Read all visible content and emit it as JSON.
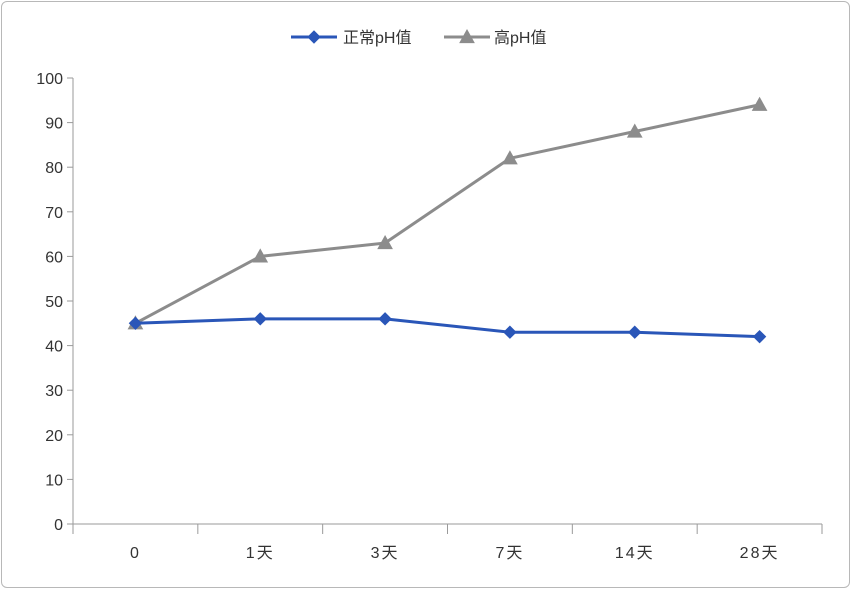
{
  "chart_data": {
    "type": "line",
    "categories": [
      "0",
      "1天",
      "3天",
      "7天",
      "14天",
      "28天"
    ],
    "series": [
      {
        "name": "正常pH值",
        "values": [
          45,
          46,
          46,
          43,
          43,
          42
        ],
        "color": "#2a56b8",
        "marker": "diamond"
      },
      {
        "name": "高pH值",
        "values": [
          45,
          60,
          63,
          82,
          88,
          94
        ],
        "color": "#8c8c8c",
        "marker": "triangle"
      }
    ],
    "ylim": [
      0,
      100
    ],
    "yticks": [
      0,
      10,
      20,
      30,
      40,
      50,
      60,
      70,
      80,
      90,
      100
    ],
    "legend_position": "top",
    "grid": false
  }
}
